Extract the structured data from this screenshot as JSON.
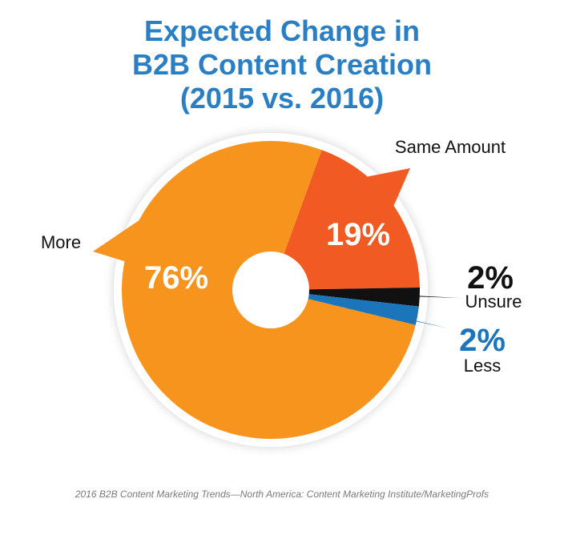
{
  "title_lines": [
    "Expected Change in",
    "B2B Content Creation",
    "(2015 vs. 2016)"
  ],
  "source": "2016 B2B Content Marketing Trends—North America: Content Marketing Institute/MarketingProfs",
  "chart_data": {
    "type": "pie",
    "variant": "donut",
    "title": "Expected Change in B2B Content Creation (2015 vs. 2016)",
    "slices": [
      {
        "label": "Same Amount",
        "value": 19,
        "value_label": "19%",
        "color": "#f15a22"
      },
      {
        "label": "Unsure",
        "value": 2,
        "value_label": "2%",
        "color": "#111111"
      },
      {
        "label": "Less",
        "value": 2,
        "value_label": "2%",
        "color": "#1b75bb"
      },
      {
        "label": "More",
        "value": 76,
        "value_label": "76%",
        "color": "#f7941d"
      }
    ],
    "legend": "none"
  }
}
